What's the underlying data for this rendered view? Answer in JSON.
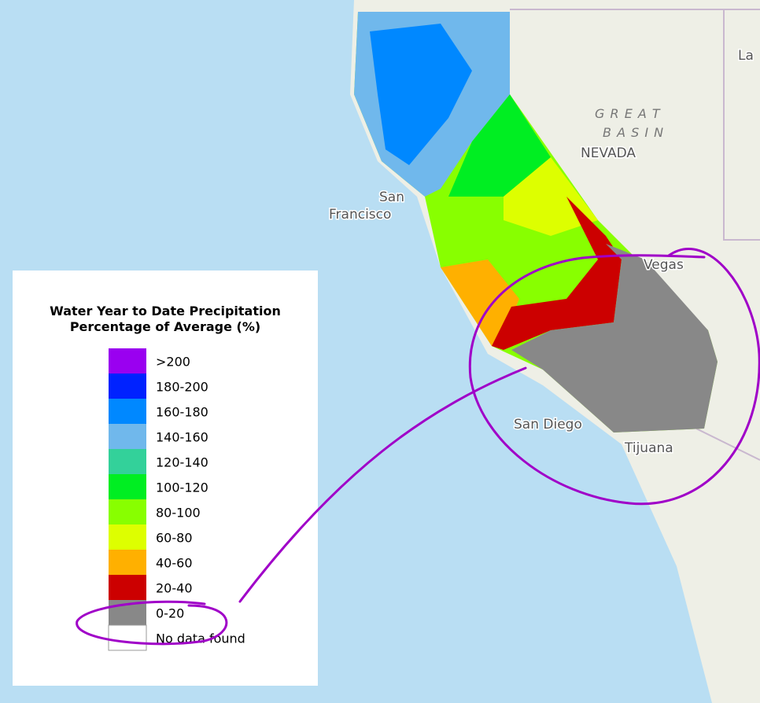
{
  "map": {
    "place_labels": [
      "La",
      "G R E A T",
      "B A S I N",
      "NEVADA",
      "San",
      "Francisco",
      "Vegas",
      "San Diego",
      "Tijuana"
    ]
  },
  "legend": {
    "title": [
      "Water Year to Date Precipitation",
      "Percentage of Average (%)"
    ],
    "items": [
      {
        "label": ">200",
        "color": "#9a00f0"
      },
      {
        "label": "180-200",
        "color": "#0022ff"
      },
      {
        "label": "160-180",
        "color": "#0088ff"
      },
      {
        "label": "140-160",
        "color": "#70b8ec"
      },
      {
        "label": "120-140",
        "color": "#33d19a"
      },
      {
        "label": "100-120",
        "color": "#00ee22"
      },
      {
        "label": "80-100",
        "color": "#88ff00"
      },
      {
        "label": "60-80",
        "color": "#ddff00"
      },
      {
        "label": "40-60",
        "color": "#ffb000"
      },
      {
        "label": "20-40",
        "color": "#cc0000"
      },
      {
        "label": "0-20",
        "color": "#888888"
      },
      {
        "label": "No data found",
        "color": "#ffffff"
      }
    ]
  }
}
